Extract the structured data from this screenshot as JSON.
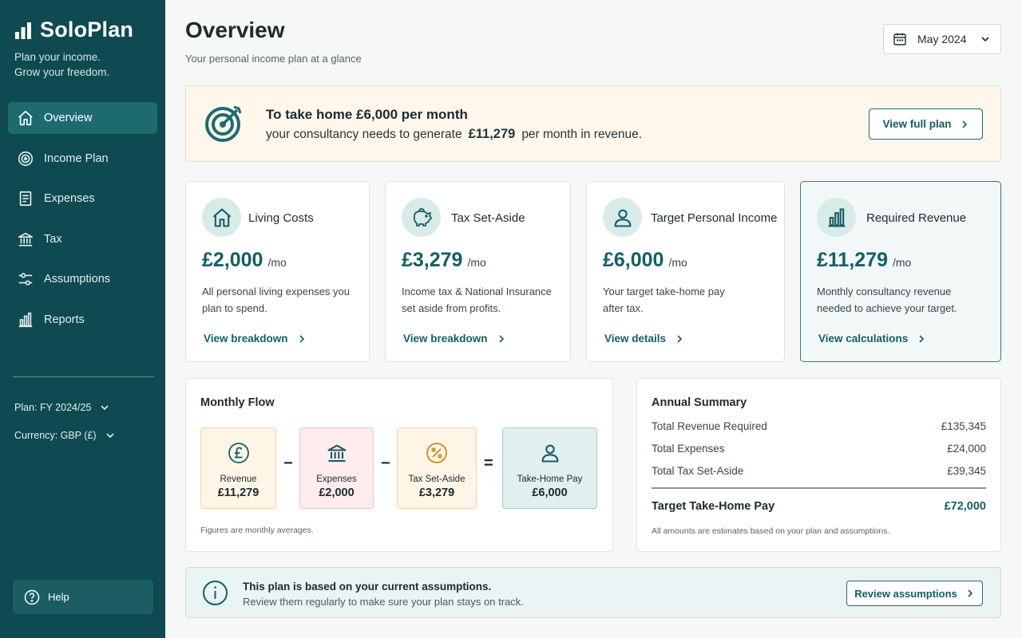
{
  "app": {
    "name": "SoloPlan",
    "tagline_line1": "Plan your income.",
    "tagline_line2": "Grow your freedom."
  },
  "sidebar": {
    "items": [
      {
        "label": "Overview",
        "icon": "home-icon",
        "active": true
      },
      {
        "label": "Income Plan",
        "icon": "target-icon",
        "active": false
      },
      {
        "label": "Expenses",
        "icon": "receipt-icon",
        "active": false
      },
      {
        "label": "Tax",
        "icon": "bank-icon",
        "active": false
      },
      {
        "label": "Assumptions",
        "icon": "sliders-icon",
        "active": false
      },
      {
        "label": "Reports",
        "icon": "bar-chart-icon",
        "active": false
      }
    ],
    "plan_select": "Plan: FY 2024/25",
    "currency_select": "Currency: GBP (£)",
    "help_label": "Help"
  },
  "header": {
    "title": "Overview",
    "subtitle": "Your personal income plan at a glance",
    "month": "May 2024"
  },
  "banner": {
    "line1": "To take home £6,000 per month",
    "line2_prefix": "your consultancy needs to generate",
    "line2_amount": "£11,279",
    "line2_suffix": "per month in revenue.",
    "button": "View full plan"
  },
  "cards": [
    {
      "title": "Living Costs",
      "amount": "£2,000",
      "unit": "/mo",
      "desc": "All personal living expenses you plan to spend.",
      "link": "View breakdown",
      "icon": "home-icon"
    },
    {
      "title": "Tax Set-Aside",
      "amount": "£3,279",
      "unit": "/mo",
      "desc": "Income tax & National Insurance set aside from profits.",
      "link": "View breakdown",
      "icon": "piggy-bank-icon"
    },
    {
      "title": "Target Personal Income",
      "amount": "£6,000",
      "unit": "/mo",
      "desc": "Your target take-home pay after tax.",
      "link": "View details",
      "icon": "user-icon"
    },
    {
      "title": "Required Revenue",
      "amount": "£11,279",
      "unit": "/mo",
      "desc": "Monthly consultancy revenue needed to achieve your target.",
      "link": "View calculations",
      "icon": "bar-chart-icon"
    }
  ],
  "monthly_flow": {
    "title": "Monthly Flow",
    "items": [
      {
        "label": "Revenue",
        "value": "£11,279",
        "icon": "pound-icon"
      },
      {
        "label": "Expenses",
        "value": "£2,000",
        "icon": "bank-icon"
      },
      {
        "label": "Tax Set-Aside",
        "value": "£3,279",
        "icon": "percent-icon"
      },
      {
        "label": "Take-Home Pay",
        "value": "£6,000",
        "icon": "user-icon"
      }
    ],
    "operators": [
      "−",
      "−",
      "="
    ],
    "note": "Figures are monthly averages."
  },
  "annual_summary": {
    "title": "Annual Summary",
    "rows": [
      {
        "label": "Total Revenue Required",
        "value": "£135,345"
      },
      {
        "label": "Total Expenses",
        "value": "£24,000"
      },
      {
        "label": "Total Tax Set-Aside",
        "value": "£39,345"
      }
    ],
    "total_label": "Target Take-Home Pay",
    "total_value": "£72,000",
    "note": "All amounts are estimates based on your plan and assumptions."
  },
  "assumptions_notice": {
    "line1": "This plan is based on your current assumptions.",
    "line2": "Review them regularly to make sure your plan stays on track.",
    "button": "Review assumptions"
  },
  "colors": {
    "sidebar": "#0e4a50",
    "accent": "#155e64",
    "banner_bg": "#fff7ec"
  }
}
